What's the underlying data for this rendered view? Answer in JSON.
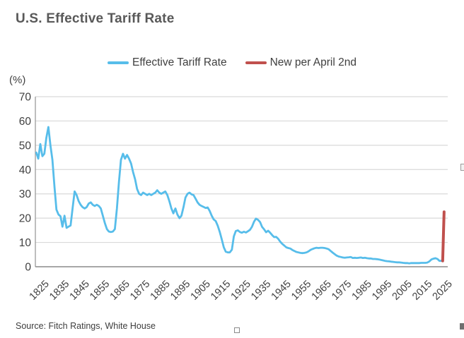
{
  "title": "U.S. Effective Tariff Rate",
  "unit_label": "(%)",
  "source": "Source: Fitch Ratings, White House",
  "legend": [
    {
      "label": "Effective Tariff Rate",
      "color": "#57bdea"
    },
    {
      "label": "New per April 2nd",
      "color": "#c0504d"
    }
  ],
  "colors": {
    "title": "#595959",
    "tick_text": "#404040",
    "gridline": "#d9d9d9",
    "axis": "#9c9c9c",
    "blue_line": "#57bdea",
    "red_line": "#c0504d"
  },
  "chart_data": {
    "type": "line",
    "title": "U.S. Effective Tariff Rate",
    "xlabel": "",
    "ylabel": "(%)",
    "ylim": [
      0,
      70
    ],
    "y_ticks": [
      0,
      10,
      20,
      30,
      40,
      50,
      60,
      70
    ],
    "x_ticks": [
      1825,
      1835,
      1845,
      1855,
      1865,
      1875,
      1885,
      1895,
      1905,
      1915,
      1925,
      1935,
      1945,
      1955,
      1965,
      1975,
      1985,
      1995,
      2005,
      2015,
      2025
    ],
    "grid": "horizontal",
    "legend_position": "top-center",
    "series": [
      {
        "name": "Effective Tariff Rate",
        "color": "#57bdea",
        "start_year": 1823,
        "step": 1,
        "values": [
          47,
          44.5,
          50.5,
          45.5,
          46.5,
          53,
          57.5,
          50,
          44,
          33,
          23.5,
          21.5,
          20.8,
          16.5,
          21,
          16,
          16.5,
          17,
          24,
          31,
          29.5,
          27,
          25.5,
          24.5,
          24,
          24.5,
          26,
          26.5,
          25.5,
          25,
          25.5,
          25,
          24,
          21,
          18,
          15.5,
          14.5,
          14.3,
          14.5,
          15.5,
          24,
          35,
          44,
          46.5,
          44.5,
          46,
          44.5,
          42.5,
          39,
          36,
          32,
          30,
          29.5,
          30.5,
          30,
          29.5,
          30,
          29.5,
          30,
          30.5,
          31.5,
          30.5,
          30,
          30.5,
          31,
          29.5,
          27,
          24,
          22,
          24,
          21.5,
          20,
          21,
          24.5,
          28.5,
          30,
          30.5,
          29.8,
          29.5,
          28,
          26.5,
          25.5,
          25,
          24.6,
          24.2,
          24.4,
          23,
          21,
          19.5,
          18.8,
          16.9,
          14.4,
          11.3,
          8,
          6.2,
          5.9,
          5.9,
          7,
          12.5,
          14.7,
          15,
          14.3,
          14,
          14.4,
          14.1,
          14.6,
          15.2,
          16.5,
          18.5,
          19.8,
          19.3,
          18.4,
          16.4,
          15.4,
          14.2,
          14.8,
          14,
          13,
          12.2,
          12.3,
          11.5,
          10.3,
          9.4,
          8.7,
          8,
          7.7,
          7.5,
          6.9,
          6.5,
          6.1,
          5.9,
          5.7,
          5.6,
          5.7,
          5.9,
          6.3,
          6.9,
          7.3,
          7.6,
          7.8,
          7.7,
          7.8,
          7.8,
          7.7,
          7.5,
          7.2,
          6.5,
          5.8,
          5.2,
          4.6,
          4.2,
          4.0,
          3.8,
          3.7,
          3.8,
          3.9,
          4.0,
          3.6,
          3.7,
          3.6,
          3.7,
          3.8,
          3.6,
          3.7,
          3.5,
          3.4,
          3.4,
          3.2,
          3.2,
          3.1,
          3.0,
          2.8,
          2.6,
          2.4,
          2.3,
          2.2,
          2.1,
          2.0,
          1.9,
          1.8,
          1.8,
          1.7,
          1.6,
          1.5,
          1.5,
          1.4,
          1.5,
          1.5,
          1.5,
          1.5,
          1.5,
          1.6,
          1.6,
          1.6,
          1.7,
          2.2,
          3.0,
          3.3,
          3.5,
          3.2,
          2.4,
          2.4
        ]
      },
      {
        "name": "New per April 2nd",
        "color": "#c0504d",
        "points": [
          [
            2024.6,
            2.4
          ],
          [
            2025.3,
            22.6
          ]
        ]
      }
    ]
  }
}
